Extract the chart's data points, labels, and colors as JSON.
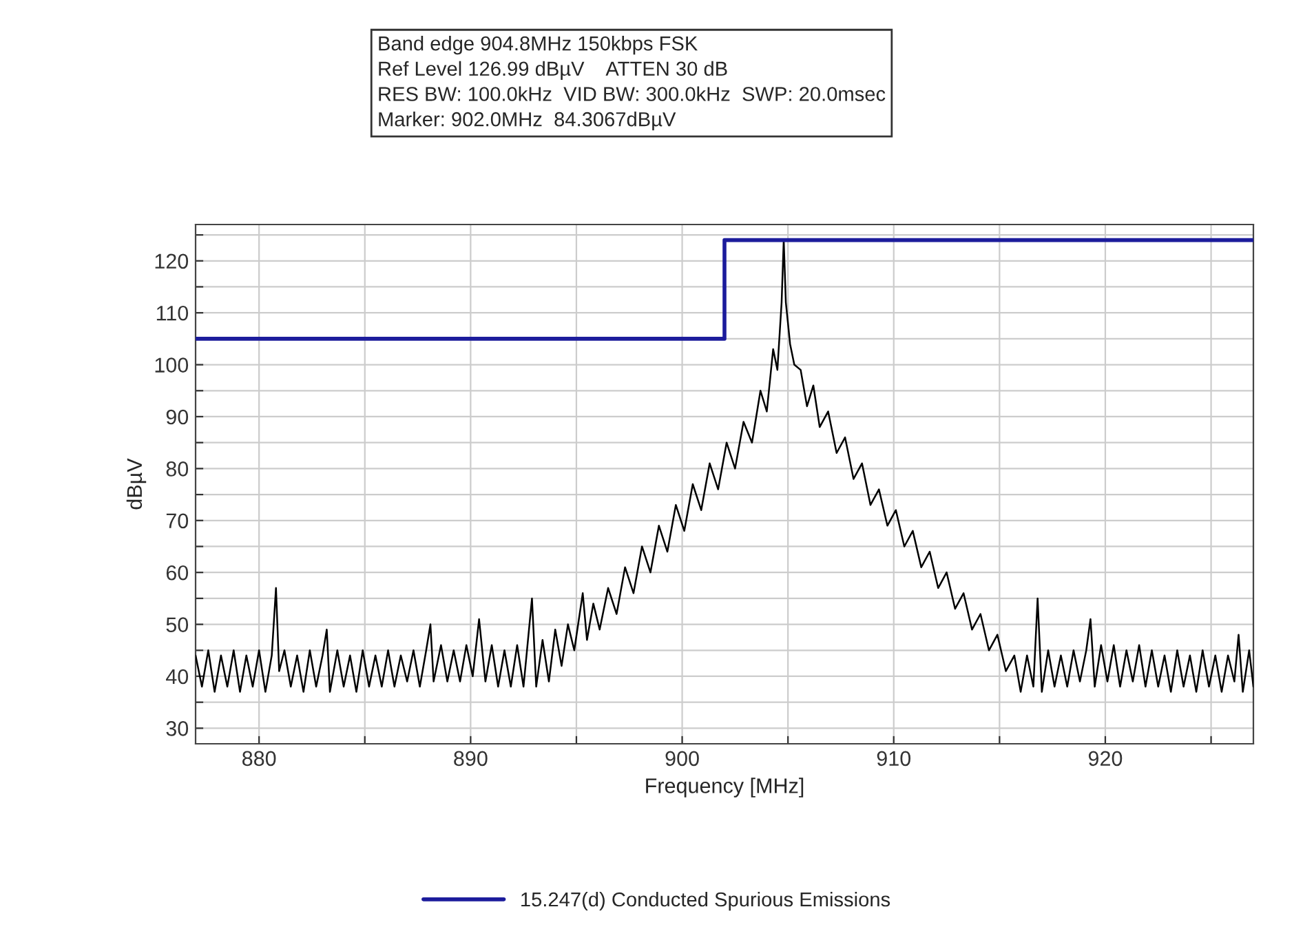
{
  "chart_data": {
    "type": "line",
    "xlabel": "Frequency [MHz]",
    "ylabel": "dBµV",
    "annotations": [
      "Band edge 904.8MHz 150kbps FSK",
      "Ref Level 126.99 dBµV    ATTEN 30 dB",
      "RES BW: 100.0kHz  VID BW: 300.0kHz  SWP: 20.0msec",
      "Marker: 902.0MHz  84.3067dBµV"
    ],
    "xlim": [
      877,
      927
    ],
    "ylim": [
      27,
      127
    ],
    "xticks": [
      880,
      {
        "value": 885,
        "label": null
      },
      890,
      {
        "value": 895,
        "label": null
      },
      900,
      {
        "value": 905,
        "label": null
      },
      910,
      {
        "value": 915,
        "label": null
      },
      920,
      {
        "value": 925,
        "label": null
      }
    ],
    "yticks": [
      30,
      {
        "value": 35,
        "label": null
      },
      40,
      {
        "value": 45,
        "label": null
      },
      50,
      {
        "value": 55,
        "label": null
      },
      60,
      {
        "value": 65,
        "label": null
      },
      70,
      {
        "value": 75,
        "label": null
      },
      80,
      {
        "value": 85,
        "label": null
      },
      90,
      {
        "value": 95,
        "label": null
      },
      100,
      {
        "value": 105,
        "label": null
      },
      110,
      {
        "value": 115,
        "label": null
      },
      120,
      {
        "value": 125,
        "label": null
      }
    ],
    "grid": true,
    "legend": "bottom",
    "series": [
      {
        "color": "#000000",
        "x": [
          877.0,
          877.3,
          877.6,
          877.9,
          878.2,
          878.5,
          878.8,
          879.1,
          879.4,
          879.7,
          880.0,
          880.3,
          880.6,
          880.8,
          880.95,
          881.2,
          881.5,
          881.8,
          882.1,
          882.4,
          882.7,
          883.0,
          883.2,
          883.35,
          883.7,
          884.0,
          884.3,
          884.6,
          884.9,
          885.2,
          885.5,
          885.8,
          886.1,
          886.4,
          886.7,
          887.0,
          887.3,
          887.6,
          887.9,
          888.1,
          888.25,
          888.6,
          888.9,
          889.2,
          889.5,
          889.8,
          890.1,
          890.4,
          890.7,
          891.0,
          891.3,
          891.6,
          891.9,
          892.2,
          892.5,
          892.9,
          893.1,
          893.4,
          893.7,
          894.0,
          894.3,
          894.6,
          894.9,
          895.3,
          895.5,
          895.8,
          896.1,
          896.5,
          896.9,
          897.3,
          897.7,
          898.1,
          898.5,
          898.9,
          899.3,
          899.7,
          900.1,
          900.5,
          900.9,
          901.3,
          901.7,
          902.1,
          902.5,
          902.9,
          903.3,
          903.7,
          904.0,
          904.3,
          904.5,
          904.7,
          904.8,
          904.9,
          905.1,
          905.3,
          905.6,
          905.9,
          906.2,
          906.5,
          906.9,
          907.3,
          907.7,
          908.1,
          908.5,
          908.9,
          909.3,
          909.7,
          910.1,
          910.5,
          910.9,
          911.3,
          911.7,
          912.1,
          912.5,
          912.9,
          913.3,
          913.7,
          914.1,
          914.5,
          914.9,
          915.3,
          915.7,
          916.0,
          916.3,
          916.6,
          916.8,
          917.0,
          917.3,
          917.6,
          917.9,
          918.2,
          918.5,
          918.8,
          919.1,
          919.3,
          919.5,
          919.8,
          920.1,
          920.4,
          920.7,
          921.0,
          921.3,
          921.6,
          921.9,
          922.2,
          922.5,
          922.8,
          923.1,
          923.4,
          923.7,
          924.0,
          924.3,
          924.6,
          924.9,
          925.2,
          925.5,
          925.8,
          926.1,
          926.3,
          926.5,
          926.8,
          927.0
        ],
        "values": [
          44,
          38,
          45,
          37,
          44,
          38,
          45,
          37,
          44,
          38,
          45,
          37,
          44,
          57,
          41,
          45,
          38,
          44,
          37,
          45,
          38,
          44,
          49,
          37,
          45,
          38,
          44,
          37,
          45,
          38,
          44,
          38,
          45,
          38,
          44,
          39,
          45,
          38,
          45,
          50,
          39,
          46,
          39,
          45,
          39,
          46,
          40,
          51,
          39,
          46,
          38,
          45,
          38,
          46,
          38,
          55,
          38,
          47,
          39,
          49,
          42,
          50,
          45,
          56,
          47,
          54,
          49,
          57,
          52,
          61,
          56,
          65,
          60,
          69,
          64,
          73,
          68,
          77,
          72,
          81,
          76,
          85,
          80,
          89,
          85,
          95,
          91,
          103,
          99,
          112,
          124,
          112,
          104,
          100,
          99,
          92,
          96,
          88,
          91,
          83,
          86,
          78,
          81,
          73,
          76,
          69,
          72,
          65,
          68,
          61,
          64,
          57,
          60,
          53,
          56,
          49,
          52,
          45,
          48,
          41,
          44,
          37,
          44,
          38,
          55,
          37,
          45,
          38,
          44,
          38,
          45,
          39,
          45,
          51,
          38,
          46,
          39,
          46,
          38,
          45,
          39,
          46,
          38,
          45,
          38,
          44,
          37,
          45,
          38,
          44,
          37,
          45,
          38,
          44,
          37,
          44,
          39,
          48,
          37,
          45,
          38
        ]
      },
      {
        "type": "step",
        "name": "15.247(d) Conducted Spurious Emissions",
        "color": "#1c1c9c",
        "x": [
          877,
          902,
          927
        ],
        "values": [
          105,
          124,
          124
        ]
      }
    ]
  }
}
